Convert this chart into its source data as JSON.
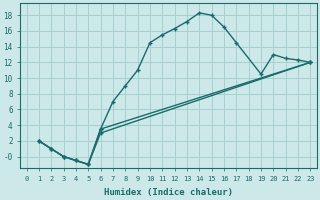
{
  "xlabel": "Humidex (Indice chaleur)",
  "bg_color": "#cce8e8",
  "line_color": "#1a6b6b",
  "grid_color": "#a8d0d0",
  "xlim": [
    -0.5,
    23.5
  ],
  "ylim": [
    -1.5,
    19.5
  ],
  "xticks": [
    0,
    1,
    2,
    3,
    4,
    5,
    6,
    7,
    8,
    9,
    10,
    11,
    12,
    13,
    14,
    15,
    16,
    17,
    18,
    19,
    20,
    21,
    22,
    23
  ],
  "yticks": [
    0,
    2,
    4,
    6,
    8,
    10,
    12,
    14,
    16,
    18
  ],
  "ytick_labels": [
    "-0",
    "2",
    "4",
    "6",
    "8",
    "10",
    "12",
    "14",
    "16",
    "18"
  ],
  "curve1_x": [
    1,
    2,
    3,
    4,
    5,
    6,
    7,
    8,
    9,
    10,
    11,
    12,
    13,
    14,
    15,
    16,
    17,
    19,
    20,
    21,
    22,
    23
  ],
  "curve1_y": [
    2,
    1,
    0,
    -0.5,
    -1,
    3.5,
    7,
    9,
    11,
    14.5,
    15.5,
    16.3,
    17.2,
    18.3,
    18,
    16.5,
    14.5,
    10.5,
    13,
    12.5,
    12.3,
    12
  ],
  "curve2_x": [
    1,
    2,
    3,
    4,
    5,
    6,
    23
  ],
  "curve2_y": [
    2,
    1,
    0,
    -0.5,
    -1,
    3.0,
    12
  ],
  "curve3_x": [
    1,
    2,
    3,
    4,
    5,
    6,
    23
  ],
  "curve3_y": [
    2,
    1,
    0,
    -0.5,
    -1,
    3.5,
    12
  ]
}
